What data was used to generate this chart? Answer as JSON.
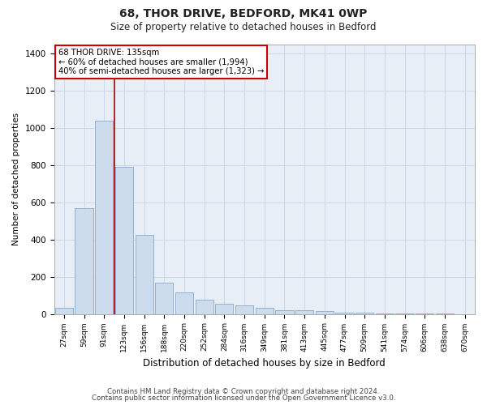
{
  "title1": "68, THOR DRIVE, BEDFORD, MK41 0WP",
  "title2": "Size of property relative to detached houses in Bedford",
  "xlabel": "Distribution of detached houses by size in Bedford",
  "ylabel": "Number of detached properties",
  "categories": [
    "27sqm",
    "59sqm",
    "91sqm",
    "123sqm",
    "156sqm",
    "188sqm",
    "220sqm",
    "252sqm",
    "284sqm",
    "316sqm",
    "349sqm",
    "381sqm",
    "413sqm",
    "445sqm",
    "477sqm",
    "509sqm",
    "541sqm",
    "574sqm",
    "606sqm",
    "638sqm",
    "670sqm"
  ],
  "values": [
    35,
    570,
    1040,
    790,
    425,
    170,
    115,
    75,
    55,
    45,
    35,
    20,
    18,
    15,
    8,
    5,
    3,
    2,
    1,
    1,
    0
  ],
  "bar_color": "#ccdcec",
  "bar_edge_color": "#88aacc",
  "grid_color": "#ccd8e8",
  "bg_color": "#e8eef6",
  "fig_color": "#ffffff",
  "annotation_box_color": "#ffffff",
  "annotation_box_edge": "#cc0000",
  "vline_color": "#aa0000",
  "vline_x": 2.5,
  "ylim": [
    0,
    1450
  ],
  "yticks": [
    0,
    200,
    400,
    600,
    800,
    1000,
    1200,
    1400
  ],
  "annotation_text": "68 THOR DRIVE: 135sqm\n← 60% of detached houses are smaller (1,994)\n40% of semi-detached houses are larger (1,323) →",
  "footer1": "Contains HM Land Registry data © Crown copyright and database right 2024.",
  "footer2": "Contains public sector information licensed under the Open Government Licence v3.0."
}
